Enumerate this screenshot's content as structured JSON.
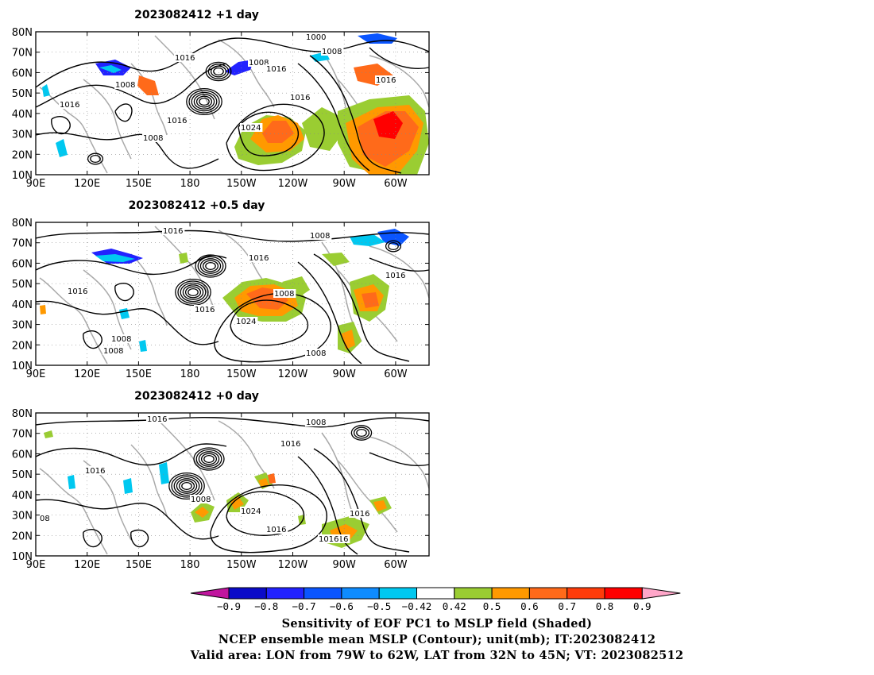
{
  "panels": [
    {
      "title": "2023082412 +1 day",
      "pressure_labels": [
        "1000",
        "1008",
        "1016",
        "1008",
        "1016",
        "1016",
        "1016",
        "1008",
        "1016",
        "1016",
        "1008",
        "1024"
      ]
    },
    {
      "title": "2023082412 +0.5 day",
      "pressure_labels": [
        "1016",
        "1008",
        "1016",
        "1016",
        "1016",
        "1008",
        "1016",
        "1024",
        "1008",
        "1008",
        "1008"
      ]
    },
    {
      "title": "2023082412 +0 day",
      "pressure_labels": [
        "1016",
        "1008",
        "1016",
        "1016",
        "1008",
        "1024",
        "1016",
        "1016",
        "1016",
        "1016",
        "08"
      ]
    }
  ],
  "lat_ticks": [
    "80N",
    "70N",
    "60N",
    "50N",
    "40N",
    "30N",
    "20N",
    "10N"
  ],
  "lon_ticks": [
    "90E",
    "120E",
    "150E",
    "180",
    "150W",
    "120W",
    "90W",
    "60W"
  ],
  "colorbar": {
    "colors": [
      "#c0159e",
      "#0b0bc8",
      "#2222ff",
      "#0a55ff",
      "#0e8cff",
      "#00c8f0",
      "#ffffff",
      "#9acd32",
      "#ff9900",
      "#ff6a1a",
      "#ff3c0a",
      "#ff0000",
      "#ffa6c9"
    ],
    "tick_labels": [
      "-0.9",
      "-0.8",
      "-0.7",
      "-0.6",
      "-0.5",
      "-0.42",
      "0.42",
      "0.5",
      "0.6",
      "0.7",
      "0.8",
      "0.9"
    ]
  },
  "captions": [
    "Sensitivity of EOF PC1 to MSLP field (Shaded)",
    "NCEP ensemble mean MSLP (Contour); unit(mb); IT:2023082412",
    "Valid area: LON from 79W to 62W, LAT from 32N to 45N; VT: 2023082512"
  ]
}
